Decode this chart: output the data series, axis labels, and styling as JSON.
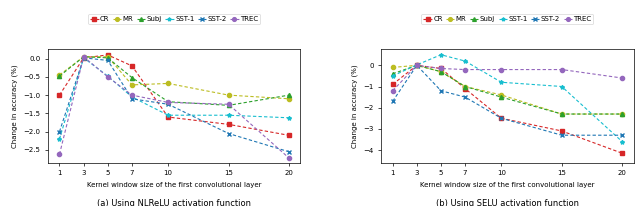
{
  "x": [
    1,
    3,
    5,
    7,
    10,
    15,
    20
  ],
  "subplot_a": {
    "title": "(a) Using NLReLU activation function",
    "ylabel": "Change in accuracy (%)",
    "xlabel": "Kernel window size of the first convolutional layer",
    "ylim": [
      -2.85,
      0.25
    ],
    "yticks": [
      0.0,
      -0.5,
      -1.0,
      -1.5,
      -2.0,
      -2.5
    ],
    "series": {
      "CR": {
        "values": [
          -1.0,
          0.02,
          0.1,
          -0.2,
          -1.6,
          -1.8,
          -2.1
        ],
        "color": "#d62728",
        "marker": "s"
      },
      "MR": {
        "values": [
          -0.45,
          0.05,
          0.05,
          -0.72,
          -0.68,
          -1.0,
          -1.1
        ],
        "color": "#bcbd22",
        "marker": "o"
      },
      "Subj": {
        "values": [
          -0.48,
          0.05,
          0.02,
          -0.52,
          -1.18,
          -1.28,
          -1.0
        ],
        "color": "#2ca02c",
        "marker": "^"
      },
      "SST-1": {
        "values": [
          -2.2,
          0.02,
          -0.48,
          -1.05,
          -1.55,
          -1.55,
          -1.62
        ],
        "color": "#17becf",
        "marker": "*"
      },
      "SST-2": {
        "values": [
          -2.0,
          0.02,
          -0.05,
          -1.1,
          -1.25,
          -2.05,
          -2.55
        ],
        "color": "#1f77b4",
        "marker": "x"
      },
      "TREC": {
        "values": [
          -2.62,
          0.05,
          -0.5,
          -1.0,
          -1.2,
          -1.25,
          -2.72
        ],
        "color": "#9467bd",
        "marker": "o"
      }
    }
  },
  "subplot_b": {
    "title": "(b) Using SELU activation function",
    "ylabel": "Change in accuracy (%)",
    "xlabel": "Kernel window size of the first convolutional layer",
    "ylim": [
      -4.6,
      0.75
    ],
    "yticks": [
      0,
      -1,
      -2,
      -3,
      -4
    ],
    "series": {
      "CR": {
        "values": [
          -0.9,
          0.0,
          -0.15,
          -1.1,
          -2.5,
          -3.1,
          -4.15
        ],
        "color": "#d62728",
        "marker": "s"
      },
      "MR": {
        "values": [
          -0.1,
          0.0,
          -0.3,
          -1.0,
          -1.4,
          -2.3,
          -2.3
        ],
        "color": "#bcbd22",
        "marker": "o"
      },
      "Subj": {
        "values": [
          -0.4,
          0.0,
          -0.3,
          -1.0,
          -1.5,
          -2.3,
          -2.3
        ],
        "color": "#2ca02c",
        "marker": "^"
      },
      "SST-1": {
        "values": [
          -0.5,
          0.02,
          0.5,
          0.2,
          -0.8,
          -1.0,
          -3.6
        ],
        "color": "#17becf",
        "marker": "*"
      },
      "SST-2": {
        "values": [
          -1.7,
          0.0,
          -1.2,
          -1.5,
          -2.5,
          -3.3,
          -3.3
        ],
        "color": "#1f77b4",
        "marker": "x"
      },
      "TREC": {
        "values": [
          -1.2,
          0.0,
          -0.15,
          -0.2,
          -0.2,
          -0.2,
          -0.6
        ],
        "color": "#9467bd",
        "marker": "o"
      }
    }
  },
  "legend_order": [
    "CR",
    "MR",
    "Subj",
    "SST-1",
    "SST-2",
    "TREC"
  ],
  "xticks": [
    1,
    3,
    5,
    7,
    10,
    15,
    20
  ],
  "legend_fontsize": 5.0,
  "tick_fontsize": 5.0,
  "label_fontsize": 5.0,
  "title_fontsize": 6.0
}
